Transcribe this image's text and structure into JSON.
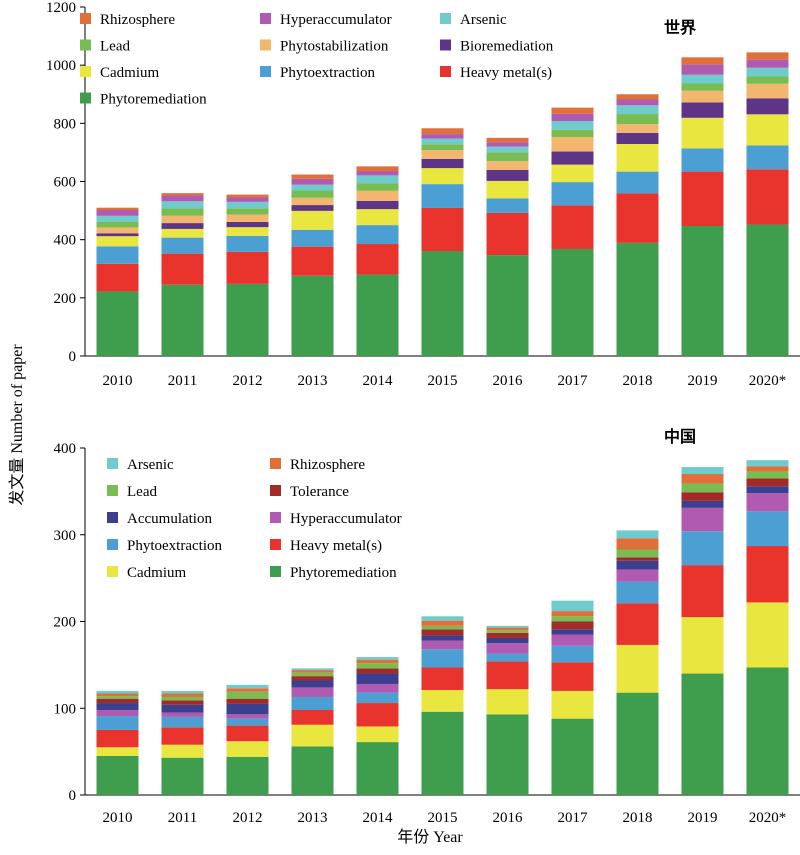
{
  "ylabel": "发文量 Number of paper",
  "xlabel": "年份 Year",
  "chart_data": [
    {
      "type": "bar",
      "stacked": true,
      "title": "世界",
      "categories": [
        "2010",
        "2011",
        "2012",
        "2013",
        "2014",
        "2015",
        "2016",
        "2017",
        "2018",
        "2019",
        "2020*"
      ],
      "ylim": [
        0,
        1200
      ],
      "yticks": [
        "0",
        "200",
        "400",
        "600",
        "800",
        "1000",
        "1200"
      ],
      "legend_order": [
        "Rhizosphere",
        "Hyperaccumulator",
        "Arsenic",
        "Lead",
        "Phytostabilization",
        "Bioremediation",
        "Cadmium",
        "Phytoextraction",
        "Heavy metal(s)",
        "Phytoremediation"
      ],
      "series": [
        {
          "name": "Phytoremediation",
          "color": "#3f9e4d",
          "values": [
            222,
            245,
            248,
            276,
            280,
            361,
            347,
            368,
            389,
            447,
            452
          ]
        },
        {
          "name": "Heavy metal(s)",
          "color": "#e8342d",
          "values": [
            95,
            107,
            110,
            100,
            105,
            148,
            145,
            150,
            170,
            187,
            190
          ]
        },
        {
          "name": "Phytoextraction",
          "color": "#4b9fd3",
          "values": [
            60,
            55,
            55,
            58,
            65,
            82,
            50,
            80,
            75,
            80,
            82
          ]
        },
        {
          "name": "Cadmium",
          "color": "#eae640",
          "values": [
            35,
            30,
            30,
            65,
            55,
            55,
            60,
            60,
            95,
            105,
            107
          ]
        },
        {
          "name": "Bioremediation",
          "color": "#5e3486",
          "values": [
            10,
            20,
            18,
            20,
            28,
            32,
            38,
            45,
            38,
            53,
            55
          ]
        },
        {
          "name": "Phytostabilization",
          "color": "#f2b66e",
          "values": [
            20,
            25,
            25,
            25,
            35,
            30,
            30,
            50,
            30,
            40,
            50
          ]
        },
        {
          "name": "Lead",
          "color": "#79bd52",
          "values": [
            20,
            25,
            22,
            25,
            25,
            20,
            30,
            25,
            35,
            25,
            25
          ]
        },
        {
          "name": "Arsenic",
          "color": "#6fcbcc",
          "values": [
            20,
            25,
            22,
            20,
            28,
            20,
            20,
            30,
            30,
            30,
            30
          ]
        },
        {
          "name": "Hyperaccumulator",
          "color": "#b05ab1",
          "values": [
            20,
            20,
            15,
            20,
            15,
            15,
            15,
            25,
            20,
            35,
            28
          ]
        },
        {
          "name": "Rhizosphere",
          "color": "#e0703a",
          "values": [
            8,
            8,
            10,
            15,
            16,
            20,
            15,
            21,
            18,
            25,
            25
          ]
        }
      ]
    },
    {
      "type": "bar",
      "stacked": true,
      "title": "中国",
      "categories": [
        "2010",
        "2011",
        "2012",
        "2013",
        "2014",
        "2015",
        "2016",
        "2017",
        "2018",
        "2019",
        "2020*"
      ],
      "ylim": [
        0,
        400
      ],
      "yticks": [
        "0",
        "100",
        "200",
        "300",
        "400"
      ],
      "legend_order": [
        "Arsenic",
        "Rhizosphere",
        "Lead",
        "Tolerance",
        "Accumulation",
        "Hyperaccumulator",
        "Phytoextraction",
        "Heavy metal(s)",
        "Cadmium",
        "Phytoremediation"
      ],
      "series": [
        {
          "name": "Phytoremediation",
          "color": "#3f9e4d",
          "values": [
            45,
            43,
            44,
            56,
            61,
            96,
            93,
            88,
            118,
            140,
            147
          ]
        },
        {
          "name": "Cadmium",
          "color": "#eae640",
          "values": [
            10,
            15,
            18,
            25,
            18,
            25,
            29,
            32,
            55,
            65,
            75
          ]
        },
        {
          "name": "Heavy metal(s)",
          "color": "#e8342d",
          "values": [
            20,
            20,
            18,
            17,
            27,
            26,
            32,
            33,
            48,
            60,
            65
          ]
        },
        {
          "name": "Phytoextraction",
          "color": "#4b9fd3",
          "values": [
            16,
            12,
            8,
            15,
            12,
            21,
            9,
            19,
            25,
            39,
            40
          ]
        },
        {
          "name": "Hyperaccumulator",
          "color": "#b05ab1",
          "values": [
            7,
            5,
            5,
            11,
            10,
            10,
            12,
            13,
            14,
            27,
            21
          ]
        },
        {
          "name": "Accumulation",
          "color": "#3a3f8f",
          "values": [
            8,
            9,
            12,
            8,
            12,
            6,
            6,
            6,
            10,
            8,
            8
          ]
        },
        {
          "name": "Tolerance",
          "color": "#a22a27",
          "values": [
            5,
            5,
            6,
            5,
            6,
            7,
            6,
            9,
            4,
            10,
            9
          ]
        },
        {
          "name": "Lead",
          "color": "#79bd52",
          "values": [
            3,
            4,
            8,
            4,
            6,
            4,
            3,
            6,
            9,
            10,
            8
          ]
        },
        {
          "name": "Rhizosphere",
          "color": "#e0703a",
          "values": [
            3,
            4,
            4,
            3,
            4,
            6,
            3,
            6,
            13,
            11,
            6
          ]
        },
        {
          "name": "Arsenic",
          "color": "#6fcbcc",
          "values": [
            3,
            3,
            4,
            2,
            3,
            5,
            2,
            12,
            9,
            8,
            7
          ]
        }
      ]
    }
  ]
}
